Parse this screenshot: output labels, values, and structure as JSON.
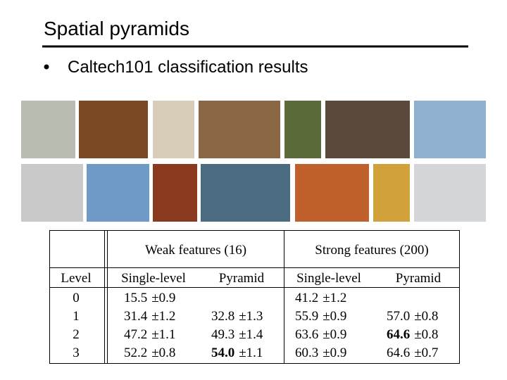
{
  "header": {
    "title": "Spatial pyramids",
    "bullet": "Caltech101 classification results"
  },
  "table": {
    "groups": [
      "Weak features (16)",
      "Strong features (200)"
    ],
    "columns": [
      "Level",
      "Single-level",
      "Pyramid",
      "Single-level",
      "Pyramid"
    ],
    "rows": [
      [
        "0",
        {
          "mean": "15.5",
          "error": "±0.9",
          "bold": false
        },
        null,
        {
          "mean": "41.2",
          "error": "±1.2",
          "bold": false
        },
        null
      ],
      [
        "1",
        {
          "mean": "31.4",
          "error": "±1.2",
          "bold": false
        },
        {
          "mean": "32.8",
          "error": "±1.3",
          "bold": false
        },
        {
          "mean": "55.9",
          "error": "±0.9",
          "bold": false
        },
        {
          "mean": "57.0",
          "error": "±0.8",
          "bold": false
        }
      ],
      [
        "2",
        {
          "mean": "47.2",
          "error": "±1.1",
          "bold": false
        },
        {
          "mean": "49.3",
          "error": "±1.4",
          "bold": false
        },
        {
          "mean": "63.6",
          "error": "±0.9",
          "bold": false
        },
        {
          "mean": "64.6",
          "error": "±0.8",
          "bold": true
        }
      ],
      [
        "3",
        {
          "mean": "52.2",
          "error": "±0.8",
          "bold": false
        },
        {
          "mean": "54.0",
          "error": "±1.1",
          "bold": true
        },
        {
          "mean": "60.3",
          "error": "±0.9",
          "bold": false
        },
        {
          "mean": "64.6",
          "error": "±0.7",
          "bold": false
        }
      ]
    ]
  }
}
